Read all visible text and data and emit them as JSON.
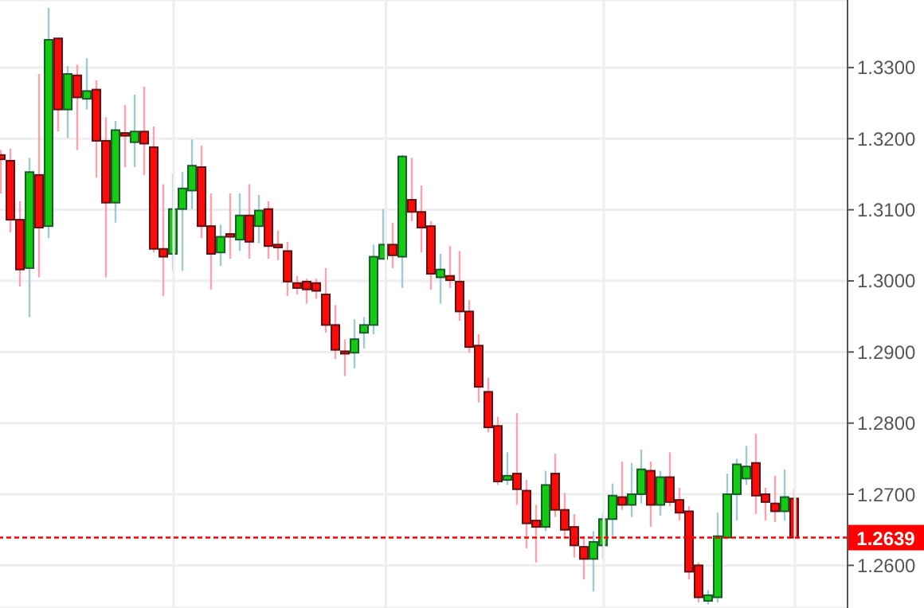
{
  "chart_data": {
    "type": "candlestick",
    "categories": [
      null,
      null,
      null,
      null,
      null,
      null,
      null,
      null,
      null,
      null,
      null,
      null,
      null,
      null,
      null,
      null,
      null,
      null,
      null,
      null,
      null,
      null,
      null,
      null,
      null,
      null,
      null,
      null,
      null,
      null,
      null,
      null,
      null,
      null,
      null,
      null,
      null,
      null,
      null,
      null,
      null,
      null,
      null,
      null,
      null,
      null,
      null,
      null,
      null,
      null,
      null,
      null,
      null,
      null,
      null,
      null,
      null,
      null,
      null,
      null,
      null,
      null,
      null,
      null,
      null,
      null,
      null,
      null,
      null,
      null,
      null,
      null,
      null,
      null,
      null,
      null,
      null,
      null,
      null,
      null,
      null,
      null,
      null,
      null
    ],
    "ohlc": [
      [
        1.3177,
        1.3184,
        1.3123,
        1.3171
      ],
      [
        1.3169,
        1.3186,
        1.3068,
        1.3086
      ],
      [
        1.3086,
        1.3112,
        1.2992,
        1.3016
      ],
      [
        1.3018,
        1.3173,
        1.2949,
        1.3153
      ],
      [
        1.3149,
        1.3291,
        1.3005,
        1.3075
      ],
      [
        1.3077,
        1.3384,
        1.306,
        1.3339
      ],
      [
        1.3341,
        1.3341,
        1.321,
        1.3241
      ],
      [
        1.3241,
        1.3302,
        1.3201,
        1.3291
      ],
      [
        1.3289,
        1.3304,
        1.3184,
        1.3258
      ],
      [
        1.3256,
        1.3313,
        1.3241,
        1.3267
      ],
      [
        1.3269,
        1.3282,
        1.3145,
        1.3197
      ],
      [
        1.3197,
        1.323,
        1.3005,
        1.311
      ],
      [
        1.311,
        1.3225,
        1.3082,
        1.3212
      ],
      [
        1.3208,
        1.3247,
        1.316,
        1.3204
      ],
      [
        1.3195,
        1.3262,
        1.316,
        1.321
      ],
      [
        1.321,
        1.3273,
        1.3149,
        1.3193
      ],
      [
        1.3188,
        1.3217,
        1.304,
        1.3045
      ],
      [
        1.3045,
        1.3136,
        1.2979,
        1.3034
      ],
      [
        1.3038,
        1.3151,
        1.3014,
        1.3101
      ],
      [
        1.3101,
        1.3153,
        1.3014,
        1.313
      ],
      [
        1.3127,
        1.3199,
        1.3101,
        1.3162
      ],
      [
        1.316,
        1.319,
        1.306,
        1.3077
      ],
      [
        1.3077,
        1.3123,
        1.2988,
        1.3038
      ],
      [
        1.304,
        1.3079,
        1.3021,
        1.3062
      ],
      [
        1.3066,
        1.3123,
        1.3031,
        1.3062
      ],
      [
        1.3058,
        1.3123,
        1.3042,
        1.3092
      ],
      [
        1.3092,
        1.3136,
        1.3031,
        1.3055
      ],
      [
        1.3077,
        1.3121,
        1.3053,
        1.3099
      ],
      [
        1.3101,
        1.3112,
        1.3031,
        1.3049
      ],
      [
        1.3051,
        1.3071,
        1.3029,
        1.3047
      ],
      [
        1.3042,
        1.3055,
        1.2979,
        1.2999
      ],
      [
        1.2997,
        1.3007,
        1.2981,
        1.299
      ],
      [
        1.2999,
        1.3003,
        1.2968,
        1.2988
      ],
      [
        1.2997,
        1.3003,
        1.2975,
        1.2986
      ],
      [
        1.2981,
        1.3018,
        1.2927,
        1.2938
      ],
      [
        1.2938,
        1.2966,
        1.289,
        1.2903
      ],
      [
        1.2901,
        1.2918,
        1.2866,
        1.2899
      ],
      [
        1.2899,
        1.2946,
        1.2877,
        1.2918
      ],
      [
        1.2927,
        1.2949,
        1.2905,
        1.2938
      ],
      [
        1.2938,
        1.3051,
        1.2925,
        1.3034
      ],
      [
        1.3031,
        1.3101,
        1.3031,
        1.3051
      ],
      [
        1.3051,
        1.3082,
        1.3018,
        1.3036
      ],
      [
        1.3034,
        1.3177,
        1.299,
        1.3175
      ],
      [
        1.3114,
        1.3173,
        1.3084,
        1.3097
      ],
      [
        1.3097,
        1.3134,
        1.304,
        1.3075
      ],
      [
        1.3077,
        1.3084,
        1.2988,
        1.301
      ],
      [
        1.3005,
        1.3038,
        1.2968,
        1.3016
      ],
      [
        1.3007,
        1.3049,
        1.299,
        1.3001
      ],
      [
        1.2999,
        1.3042,
        1.2944,
        1.2957
      ],
      [
        1.2957,
        1.2973,
        1.2899,
        1.2907
      ],
      [
        1.2909,
        1.2925,
        1.2829,
        1.2851
      ],
      [
        1.2844,
        1.2864,
        1.2787,
        1.2794
      ],
      [
        1.2796,
        1.2809,
        1.2713,
        1.2718
      ],
      [
        1.272,
        1.2759,
        1.2713,
        1.2726
      ],
      [
        1.2729,
        1.2814,
        1.2685,
        1.2707
      ],
      [
        1.2705,
        1.272,
        1.2624,
        1.2659
      ],
      [
        1.2663,
        1.2685,
        1.2604,
        1.2654
      ],
      [
        1.2654,
        1.2733,
        1.2648,
        1.2713
      ],
      [
        1.2729,
        1.2757,
        1.2668,
        1.2678
      ],
      [
        1.2678,
        1.2702,
        1.2639,
        1.265
      ],
      [
        1.2654,
        1.2672,
        1.2611,
        1.2628
      ],
      [
        1.2626,
        1.2641,
        1.258,
        1.2609
      ],
      [
        1.2609,
        1.2648,
        1.2563,
        1.2633
      ],
      [
        1.2628,
        1.2674,
        1.2609,
        1.2665
      ],
      [
        1.2665,
        1.2715,
        1.2641,
        1.2698
      ],
      [
        1.2696,
        1.2746,
        1.2678,
        1.2685
      ],
      [
        1.2685,
        1.2744,
        1.2668,
        1.27
      ],
      [
        1.27,
        1.2763,
        1.2687,
        1.2735
      ],
      [
        1.2733,
        1.2746,
        1.2654,
        1.2685
      ],
      [
        1.2685,
        1.2733,
        1.267,
        1.2724
      ],
      [
        1.2724,
        1.2759,
        1.2683,
        1.2689
      ],
      [
        1.2692,
        1.2709,
        1.2663,
        1.2674
      ],
      [
        1.2676,
        1.2683,
        1.258,
        1.2591
      ],
      [
        1.26,
        1.2604,
        1.2548,
        1.2555
      ],
      [
        1.255,
        1.2565,
        1.2545,
        1.2558
      ],
      [
        1.2555,
        1.2674,
        1.2548,
        1.2641
      ],
      [
        1.2639,
        1.2729,
        1.2637,
        1.27
      ],
      [
        1.27,
        1.275,
        1.2663,
        1.2742
      ],
      [
        1.2722,
        1.2768,
        1.2713,
        1.2739
      ],
      [
        1.2744,
        1.2785,
        1.2672,
        1.2698
      ],
      [
        1.27,
        1.2709,
        1.2663,
        1.2689
      ],
      [
        1.2687,
        1.2726,
        1.2661,
        1.2676
      ],
      [
        1.2676,
        1.2735,
        1.2663,
        1.2696
      ],
      [
        1.2694,
        1.2707,
        1.2635,
        1.2639
      ]
    ],
    "ylim": [
      1.254,
      1.3395
    ],
    "yticks": [
      {
        "value": 1.26,
        "label": "1.2600"
      },
      {
        "value": 1.27,
        "label": "1.2700"
      },
      {
        "value": 1.28,
        "label": "1.2800"
      },
      {
        "value": 1.29,
        "label": "1.2900"
      },
      {
        "value": 1.3,
        "label": "1.3000"
      },
      {
        "value": 1.31,
        "label": "1.3100"
      },
      {
        "value": 1.32,
        "label": "1.3200"
      },
      {
        "value": 1.33,
        "label": "1.3300"
      }
    ],
    "ref_lines": [
      {
        "axis": "y",
        "value": 1.2639,
        "label": "1.2639",
        "color": "#ff0000",
        "line_style": "dashed"
      }
    ],
    "grid": true
  }
}
